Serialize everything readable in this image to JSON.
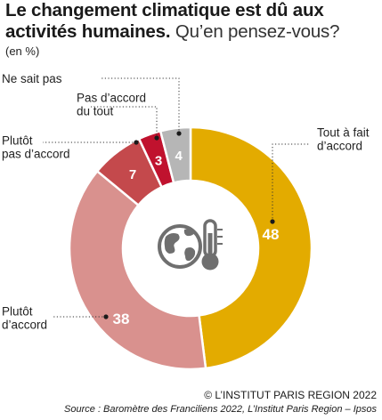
{
  "title": {
    "bold": "Le changement climatique est dû aux activités humaines.",
    "light": "Qu’en pensez-vous?"
  },
  "unit_note": "(en %)",
  "credit": "© L’INSTITUT PARIS REGION 2022",
  "source": "Source : Baromètre des Franciliens 2022, L’Institut Paris Region – Ipsos",
  "center_icon": "globe-thermometer-icon",
  "chart_data": {
    "type": "pie",
    "donut": true,
    "categories": [
      "Tout à fait d’accord",
      "Plutôt d’accord",
      "Plutôt pas d’accord",
      "Pas d’accord du tout",
      "Ne sait pas"
    ],
    "values": [
      48,
      38,
      7,
      3,
      4
    ],
    "colors": [
      "#e3ab00",
      "#d9918e",
      "#c4494c",
      "#c0122e",
      "#b6b6b6"
    ],
    "label_lines": [
      [
        "Tout à fait",
        "d’accord"
      ],
      [
        "Plutôt",
        "d’accord"
      ],
      [
        "Plutôt",
        "pas d’accord"
      ],
      [
        "Pas d’accord",
        "du tout"
      ],
      [
        "Ne sait pas"
      ]
    ]
  }
}
